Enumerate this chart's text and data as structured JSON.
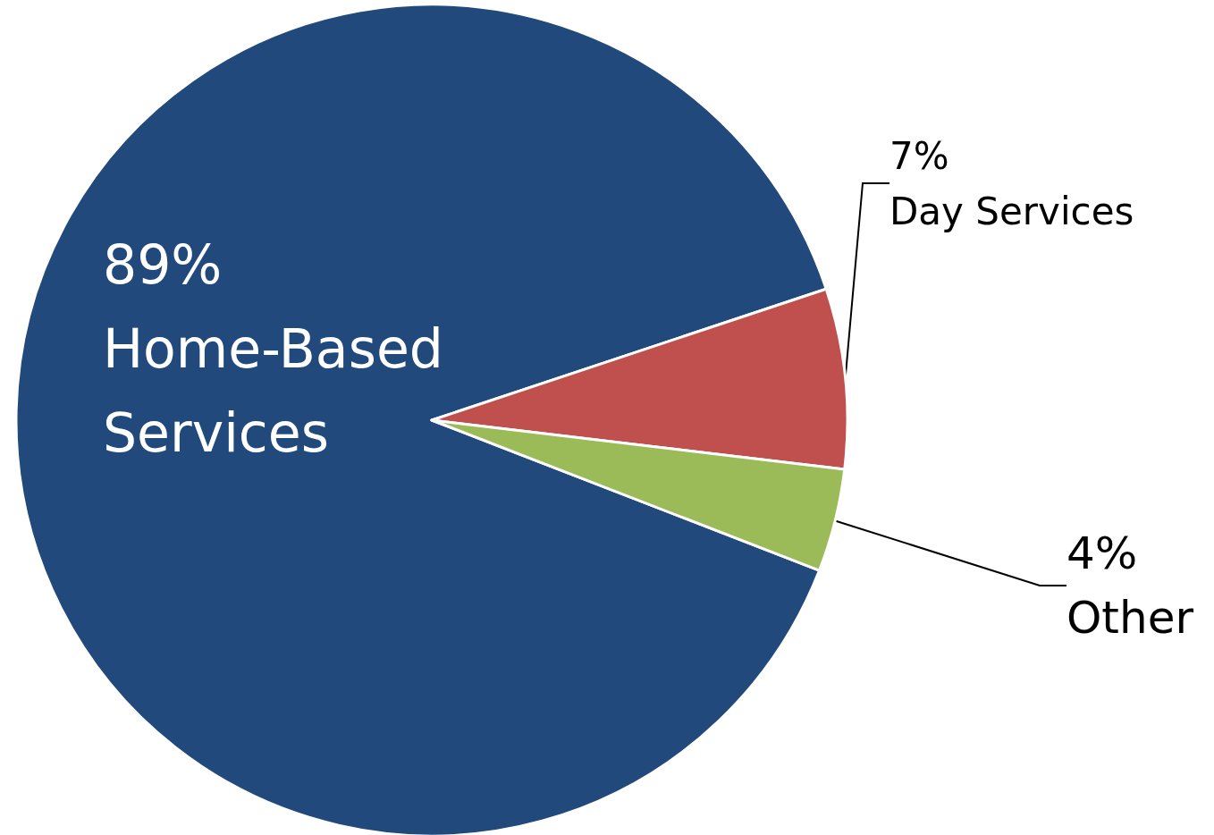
{
  "chart_data": {
    "type": "pie",
    "categories": [
      "Home-Based Services",
      "Day Services",
      "Other"
    ],
    "values": [
      89,
      7,
      4
    ],
    "colors": [
      "#21497b",
      "#c0504d",
      "#9bbb59"
    ],
    "value_labels": [
      "89%",
      "7%",
      "4%"
    ]
  }
}
